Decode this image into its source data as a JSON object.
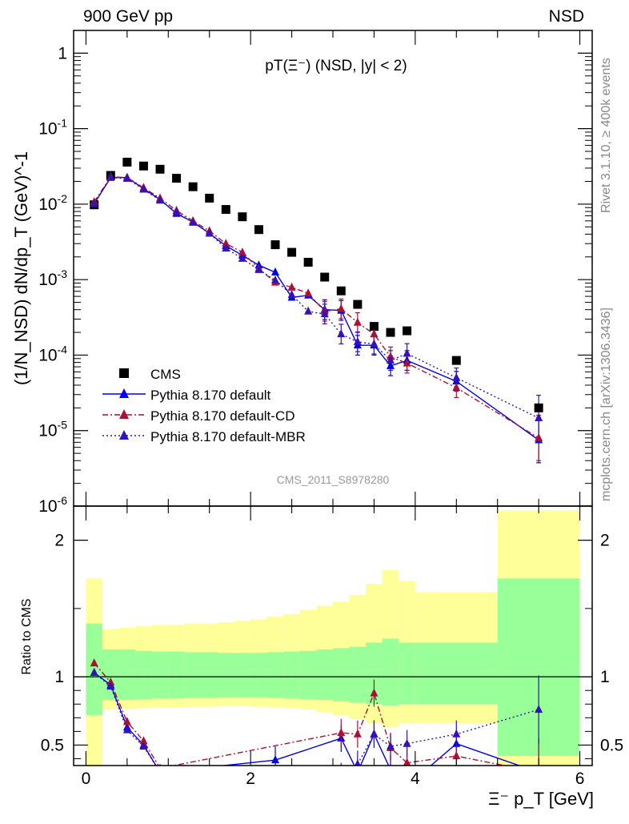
{
  "header": {
    "left": "900 GeV pp",
    "right": "NSD"
  },
  "side_labels": {
    "rivet": "Rivet 3.1.10, ≥ 400k events",
    "mcplots": "mcplots.cern.ch [arXiv:1306.3436]"
  },
  "chart_data": [
    {
      "type": "scatter",
      "title": "pT(Ξ⁻) (NSD, |y| < 2)",
      "ylabel": "(1/N_NSD) dN/dp_T (GeV)^-1",
      "yscale": "log",
      "ylim": [
        1e-06,
        2
      ],
      "xlim": [
        -0.15,
        6.15
      ],
      "y_tick_labels": [
        "10^-6",
        "10^-5",
        "10^-4",
        "10^-3",
        "10^-2",
        "10^-1",
        "1"
      ],
      "watermark": "CMS_2011_S8978280",
      "legend_position": "bottom-left",
      "series": [
        {
          "name": "CMS",
          "color": "#000000",
          "marker": "square",
          "x": [
            0.1,
            0.3,
            0.5,
            0.7,
            0.9,
            1.1,
            1.3,
            1.5,
            1.7,
            1.9,
            2.1,
            2.3,
            2.5,
            2.7,
            2.9,
            3.1,
            3.3,
            3.5,
            3.7,
            3.9,
            4.5,
            5.5
          ],
          "y": [
            0.0098,
            0.024,
            0.036,
            0.032,
            0.029,
            0.022,
            0.017,
            0.012,
            0.0085,
            0.0068,
            0.0046,
            0.0029,
            0.0023,
            0.0017,
            0.00108,
            0.00071,
            0.00047,
            0.00024,
            0.0002,
            0.00021,
            8.5e-05,
            2e-05
          ]
        },
        {
          "name": "Pythia 8.170 default",
          "color": "#0000ee",
          "dash": "",
          "x": [
            0.1,
            0.3,
            0.5,
            0.7,
            0.9,
            1.1,
            1.3,
            1.5,
            1.7,
            1.9,
            2.1,
            2.3,
            2.5,
            2.7,
            2.9,
            3.1,
            3.3,
            3.5,
            3.7,
            3.9,
            4.5,
            5.5
          ],
          "y": [
            0.0101,
            0.0225,
            0.0225,
            0.016,
            0.0115,
            0.0075,
            0.0058,
            0.0041,
            0.0028,
            0.0021,
            0.00155,
            0.00125,
            0.00058,
            0.00062,
            0.0004,
            0.00039,
            0.000135,
            0.000135,
            7.2e-05,
            8.5e-05,
            4.5e-05,
            7.5e-06
          ]
        },
        {
          "name": "Pythia 8.170 default-CD",
          "color": "#aa1133",
          "dash": "7 3 2 3",
          "x": [
            0.1,
            0.3,
            0.5,
            0.7,
            0.9,
            1.1,
            1.3,
            1.5,
            1.7,
            1.9,
            2.1,
            2.3,
            2.5,
            2.7,
            2.9,
            3.1,
            3.3,
            3.5,
            3.7,
            3.9,
            4.5,
            5.5
          ],
          "y": [
            0.0107,
            0.023,
            0.0225,
            0.0165,
            0.012,
            0.0082,
            0.006,
            0.0044,
            0.003,
            0.0023,
            0.0014,
            0.00092,
            0.00079,
            0.00066,
            0.00038,
            0.00041,
            0.00027,
            0.00019,
            9.5e-05,
            7.8e-05,
            3.7e-05,
            8e-06
          ]
        },
        {
          "name": "Pythia 8.170 default-MBR",
          "color": "#3311bb",
          "dash": "2 3",
          "x": [
            0.1,
            0.3,
            0.5,
            0.7,
            0.9,
            1.1,
            1.3,
            1.5,
            1.7,
            1.9,
            2.1,
            2.3,
            2.5,
            2.7,
            2.9,
            3.1,
            3.3,
            3.5,
            3.7,
            3.9,
            4.5,
            5.5
          ],
          "y": [
            0.0101,
            0.0225,
            0.0218,
            0.0157,
            0.0112,
            0.0078,
            0.0057,
            0.0041,
            0.0026,
            0.0019,
            0.00135,
            0.00098,
            0.00063,
            0.00038,
            0.00035,
            0.00019,
            0.00015,
            0.00014,
            8.5e-05,
            0.000105,
            5e-05,
            1.47e-05
          ]
        }
      ]
    },
    {
      "type": "line",
      "ylabel": "Ratio to CMS",
      "xlabel": "Ξ⁻ p_T [GeV]",
      "xlim": [
        -0.15,
        6.15
      ],
      "ylim": [
        0.35,
        2.25
      ],
      "x_tick_labels": [
        "0",
        "2",
        "4",
        "6"
      ],
      "y_tick_labels": [
        "0.5",
        "1",
        "2"
      ],
      "bands": {
        "edges": [
          0.0,
          0.2,
          0.4,
          0.6,
          0.8,
          1.0,
          1.2,
          1.4,
          1.6,
          1.8,
          2.0,
          2.2,
          2.4,
          2.6,
          2.8,
          3.0,
          3.2,
          3.4,
          3.6,
          3.8,
          4.0,
          5.0,
          6.0
        ],
        "stat_color": "#99ff99",
        "total_color": "#ffff99",
        "stat_lo": [
          0.72,
          0.83,
          0.83,
          0.835,
          0.84,
          0.84,
          0.845,
          0.845,
          0.85,
          0.85,
          0.85,
          0.845,
          0.84,
          0.835,
          0.83,
          0.82,
          0.81,
          0.8,
          0.79,
          0.8,
          0.8,
          0.42
        ],
        "stat_hi": [
          1.39,
          1.2,
          1.2,
          1.19,
          1.185,
          1.185,
          1.18,
          1.18,
          1.175,
          1.175,
          1.175,
          1.18,
          1.185,
          1.19,
          1.2,
          1.21,
          1.22,
          1.25,
          1.28,
          1.25,
          1.25,
          1.72
        ],
        "total_lo": [
          0.3,
          0.76,
          0.765,
          0.77,
          0.775,
          0.775,
          0.78,
          0.78,
          0.785,
          0.785,
          0.78,
          0.775,
          0.77,
          0.76,
          0.74,
          0.72,
          0.69,
          0.66,
          0.63,
          0.66,
          0.66,
          0.3
        ],
        "total_hi": [
          1.72,
          1.35,
          1.36,
          1.37,
          1.38,
          1.38,
          1.39,
          1.39,
          1.4,
          1.41,
          1.42,
          1.44,
          1.46,
          1.49,
          1.52,
          1.55,
          1.6,
          1.68,
          1.78,
          1.7,
          1.62,
          2.22
        ]
      },
      "series": [
        {
          "name": "Pythia 8.170 default",
          "x": [
            0.1,
            0.3,
            0.5,
            0.7,
            0.9,
            2.3,
            3.1,
            3.3,
            3.5,
            3.7,
            3.9,
            4.5,
            5.5
          ],
          "y": [
            1.03,
            0.94,
            0.63,
            0.5,
            0.3,
            0.39,
            0.55,
            0.3,
            0.58,
            0.32,
            0.2,
            0.51,
            0.3
          ]
        },
        {
          "name": "Pythia 8.170 default-CD",
          "x": [
            0.1,
            0.3,
            0.5,
            0.7,
            0.9,
            3.1,
            3.3,
            3.5,
            3.7,
            3.9,
            4.5,
            5.5
          ],
          "y": [
            1.1,
            0.96,
            0.67,
            0.53,
            0.33,
            0.59,
            0.58,
            0.88,
            0.48,
            0.37,
            0.42,
            0.3
          ]
        },
        {
          "name": "Pythia 8.170 default-MBR",
          "x": [
            0.1,
            0.3,
            0.5,
            0.7,
            0.9,
            3.1,
            3.3,
            3.5,
            3.7,
            3.9,
            4.5,
            5.5
          ],
          "y": [
            1.03,
            0.93,
            0.61,
            0.49,
            0.3,
            0.27,
            0.36,
            0.58,
            0.49,
            0.51,
            0.58,
            0.76
          ]
        }
      ]
    }
  ]
}
